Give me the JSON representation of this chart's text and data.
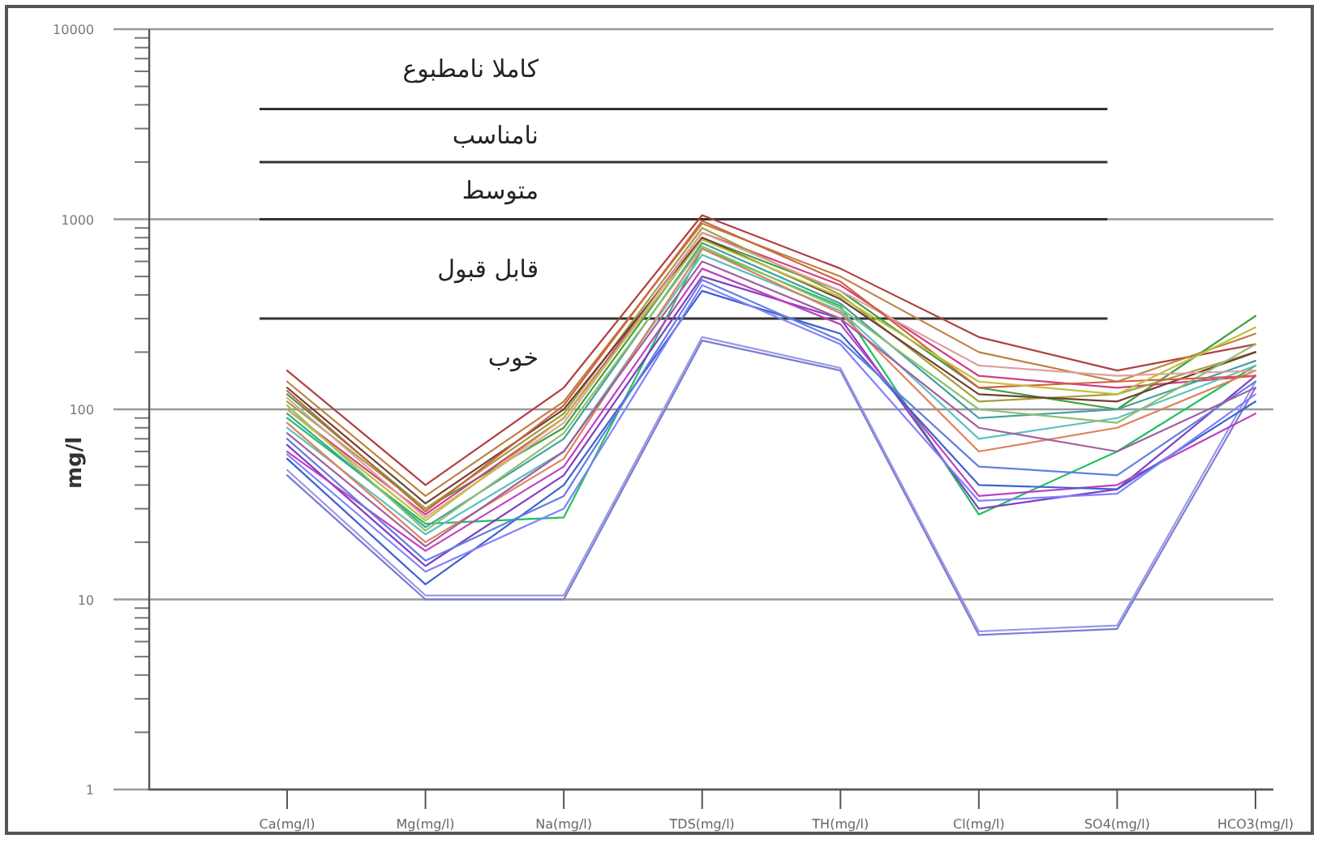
{
  "chart_data": {
    "type": "line",
    "ylabel": "mg/l",
    "log": "y",
    "grid": "y",
    "categories": [
      "Ca(mg/l)",
      "Mg(mg/l)",
      "Na(mg/l)",
      "TDS(mg/l)",
      "TH(mg/l)",
      "Cl(mg/l)",
      "SO4(mg/l)",
      "HCO3(mg/l)"
    ],
    "ylim": [
      1,
      10000
    ],
    "yticks": [
      1,
      10,
      100,
      1000,
      10000
    ],
    "ref_lines": [
      {
        "axis": "y",
        "value": 300,
        "color": "#333333"
      },
      {
        "axis": "y",
        "value": 1000,
        "color": "#333333"
      },
      {
        "axis": "y",
        "value": 2000,
        "color": "#333333"
      },
      {
        "axis": "y",
        "value": 3800,
        "color": "#333333"
      }
    ],
    "annotations": [
      "کاملا   نامطبوع",
      "نامناسب",
      "متوسط",
      "قابل  قبول",
      "خوب"
    ],
    "series": [
      {
        "color": "#7b7bd6",
        "values": [
          45,
          10,
          10,
          230,
          160,
          6.5,
          7,
          130
        ]
      },
      {
        "color": "#9a9ae0",
        "values": [
          48,
          10.5,
          10.5,
          240,
          165,
          6.8,
          7.3,
          140
        ]
      },
      {
        "color": "#b04040",
        "values": [
          160,
          40,
          130,
          1050,
          550,
          240,
          160,
          220
        ]
      },
      {
        "color": "#c08040",
        "values": [
          140,
          35,
          110,
          950,
          500,
          200,
          140,
          250
        ]
      },
      {
        "color": "#40a040",
        "values": [
          120,
          30,
          80,
          800,
          420,
          130,
          100,
          310
        ]
      },
      {
        "color": "#20c060",
        "values": [
          90,
          25,
          27,
          700,
          350,
          28,
          60,
          170
        ]
      },
      {
        "color": "#8040c0",
        "values": [
          65,
          15,
          45,
          500,
          300,
          30,
          38,
          150
        ]
      },
      {
        "color": "#c040c0",
        "values": [
          60,
          18,
          50,
          550,
          280,
          35,
          40,
          95
        ]
      },
      {
        "color": "#4060d0",
        "values": [
          55,
          12,
          40,
          420,
          250,
          40,
          38,
          110
        ]
      },
      {
        "color": "#d04080",
        "values": [
          100,
          28,
          90,
          850,
          450,
          150,
          130,
          150
        ]
      },
      {
        "color": "#60c0c0",
        "values": [
          80,
          22,
          60,
          650,
          330,
          70,
          90,
          170
        ]
      },
      {
        "color": "#a0a040",
        "values": [
          110,
          30,
          95,
          900,
          400,
          110,
          120,
          200
        ]
      },
      {
        "color": "#704030",
        "values": [
          130,
          32,
          100,
          800,
          380,
          120,
          110,
          200
        ]
      },
      {
        "color": "#e08060",
        "values": [
          85,
          20,
          55,
          700,
          320,
          60,
          80,
          160
        ]
      },
      {
        "color": "#6080e0",
        "values": [
          70,
          16,
          35,
          480,
          230,
          50,
          45,
          140
        ]
      },
      {
        "color": "#a060a0",
        "values": [
          75,
          19,
          60,
          600,
          300,
          80,
          60,
          130
        ]
      },
      {
        "color": "#40a0a0",
        "values": [
          95,
          24,
          70,
          750,
          360,
          90,
          100,
          180
        ]
      },
      {
        "color": "#e0a0a0",
        "values": [
          115,
          27,
          85,
          850,
          420,
          170,
          150,
          160
        ]
      },
      {
        "color": "#90c070",
        "values": [
          105,
          23,
          75,
          720,
          340,
          100,
          85,
          220
        ]
      },
      {
        "color": "#d06040",
        "values": [
          125,
          29,
          105,
          980,
          470,
          130,
          140,
          150
        ]
      },
      {
        "color": "#8080ff",
        "values": [
          58,
          14,
          30,
          450,
          220,
          33,
          36,
          120
        ]
      },
      {
        "color": "#c0c040",
        "values": [
          100,
          26,
          90,
          780,
          390,
          140,
          120,
          270
        ]
      }
    ]
  }
}
